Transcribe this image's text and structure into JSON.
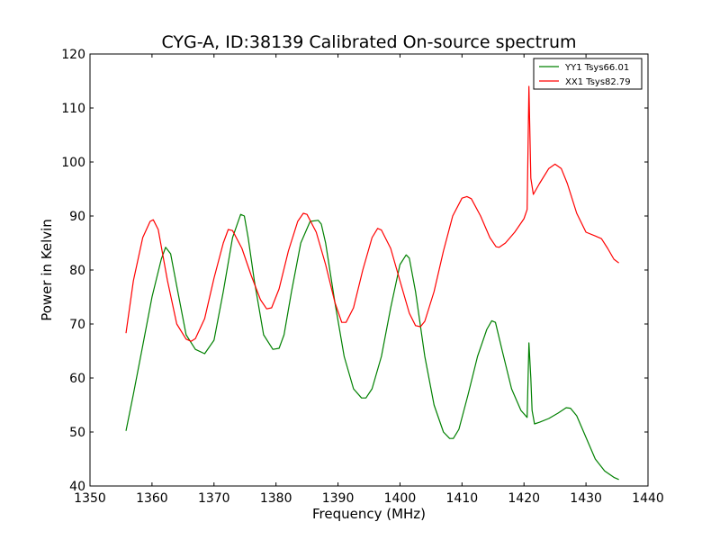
{
  "chart_data": {
    "type": "line",
    "title": "CYG-A, ID:38139 Calibrated On-source spectrum",
    "xlabel": "Frequency (MHz)",
    "ylabel": "Power in Kelvin",
    "xlim": [
      1350,
      1440
    ],
    "ylim": [
      40,
      120
    ],
    "xticks": [
      1350,
      1360,
      1370,
      1380,
      1390,
      1400,
      1410,
      1420,
      1430,
      1440
    ],
    "yticks": [
      40,
      50,
      60,
      70,
      80,
      90,
      100,
      110,
      120
    ],
    "grid": false,
    "legend": {
      "placement": "top-right"
    },
    "series": [
      {
        "name": "YY1 Tsys66.01",
        "color": "#008000",
        "x": [
          1355.8,
          1357,
          1358.5,
          1360,
          1361.5,
          1362.2,
          1363,
          1364,
          1365.5,
          1367,
          1368.5,
          1370,
          1371.5,
          1373,
          1374.3,
          1374.9,
          1375.5,
          1376.5,
          1378,
          1379.5,
          1380.5,
          1381.3,
          1382.5,
          1384,
          1385.5,
          1386.8,
          1387.3,
          1388,
          1389.5,
          1391,
          1392.5,
          1393.8,
          1394.5,
          1395.5,
          1397,
          1398.5,
          1400,
          1401,
          1401.5,
          1402.5,
          1404,
          1405.5,
          1407,
          1408,
          1408.6,
          1409.5,
          1411,
          1412.5,
          1414,
          1414.8,
          1415.4,
          1416.5,
          1418,
          1419.5,
          1420.5,
          1420.8,
          1421.1,
          1421.3,
          1421.7,
          1422.5,
          1424,
          1425.5,
          1426.8,
          1427.5,
          1428.5,
          1430,
          1431.5,
          1433,
          1434.5,
          1435.3
        ],
        "y": [
          50.2,
          57,
          66,
          75,
          82,
          84.2,
          83,
          77,
          68,
          65.3,
          64.5,
          67,
          76,
          86,
          90.3,
          90,
          86,
          78,
          68,
          65.3,
          65.5,
          68,
          76,
          85,
          89,
          89.2,
          88.5,
          85,
          74,
          64,
          58,
          56.3,
          56.3,
          58,
          64,
          73,
          81,
          82.8,
          82.2,
          76,
          64,
          55,
          50,
          48.8,
          48.8,
          50.5,
          57,
          64,
          69,
          70.6,
          70.3,
          65,
          58,
          54,
          52.7,
          66.5,
          60,
          54,
          51.5,
          51.8,
          52.5,
          53.5,
          54.5,
          54.4,
          53,
          49,
          45,
          42.8,
          41.6,
          41.2
        ]
      },
      {
        "name": "XX1 Tsys82.79",
        "color": "#ff0000",
        "x": [
          1355.8,
          1357,
          1358.5,
          1359.7,
          1360.2,
          1361,
          1362.5,
          1364,
          1365.5,
          1366.3,
          1367,
          1368.5,
          1370,
          1371.5,
          1372.3,
          1373,
          1374.5,
          1376,
          1377.5,
          1378.5,
          1379.3,
          1380.5,
          1382,
          1383.5,
          1384.4,
          1385,
          1386.5,
          1388,
          1389.5,
          1390.6,
          1391.3,
          1392.5,
          1394,
          1395.5,
          1396.4,
          1397,
          1398.5,
          1400,
          1401.5,
          1402.5,
          1403.3,
          1404,
          1405.5,
          1407,
          1408.5,
          1410,
          1410.8,
          1411.5,
          1413,
          1414.5,
          1415.5,
          1416,
          1417,
          1418.5,
          1420,
          1420.5,
          1420.8,
          1421.1,
          1421.5,
          1422.5,
          1424,
          1425,
          1426,
          1427,
          1428.5,
          1430,
          1431.5,
          1432.5,
          1433.5,
          1434.5,
          1435.3
        ],
        "y": [
          68.3,
          78,
          86,
          89,
          89.3,
          87.5,
          78,
          70,
          67.2,
          66.8,
          67.3,
          71,
          78.5,
          85,
          87.5,
          87.3,
          84,
          79,
          74.5,
          72.8,
          73,
          76.5,
          83.5,
          89,
          90.5,
          90.3,
          87,
          81,
          74,
          70.3,
          70.3,
          73,
          80,
          86,
          87.7,
          87.4,
          84,
          78,
          72,
          69.7,
          69.5,
          70.5,
          76,
          83.5,
          90,
          93.3,
          93.6,
          93.2,
          90,
          86,
          84.3,
          84.2,
          85,
          87,
          89.5,
          91.2,
          114,
          97,
          94,
          96,
          98.8,
          99.6,
          98.8,
          96,
          90.5,
          87,
          86.3,
          85.8,
          84,
          82,
          81.3
        ]
      }
    ]
  }
}
